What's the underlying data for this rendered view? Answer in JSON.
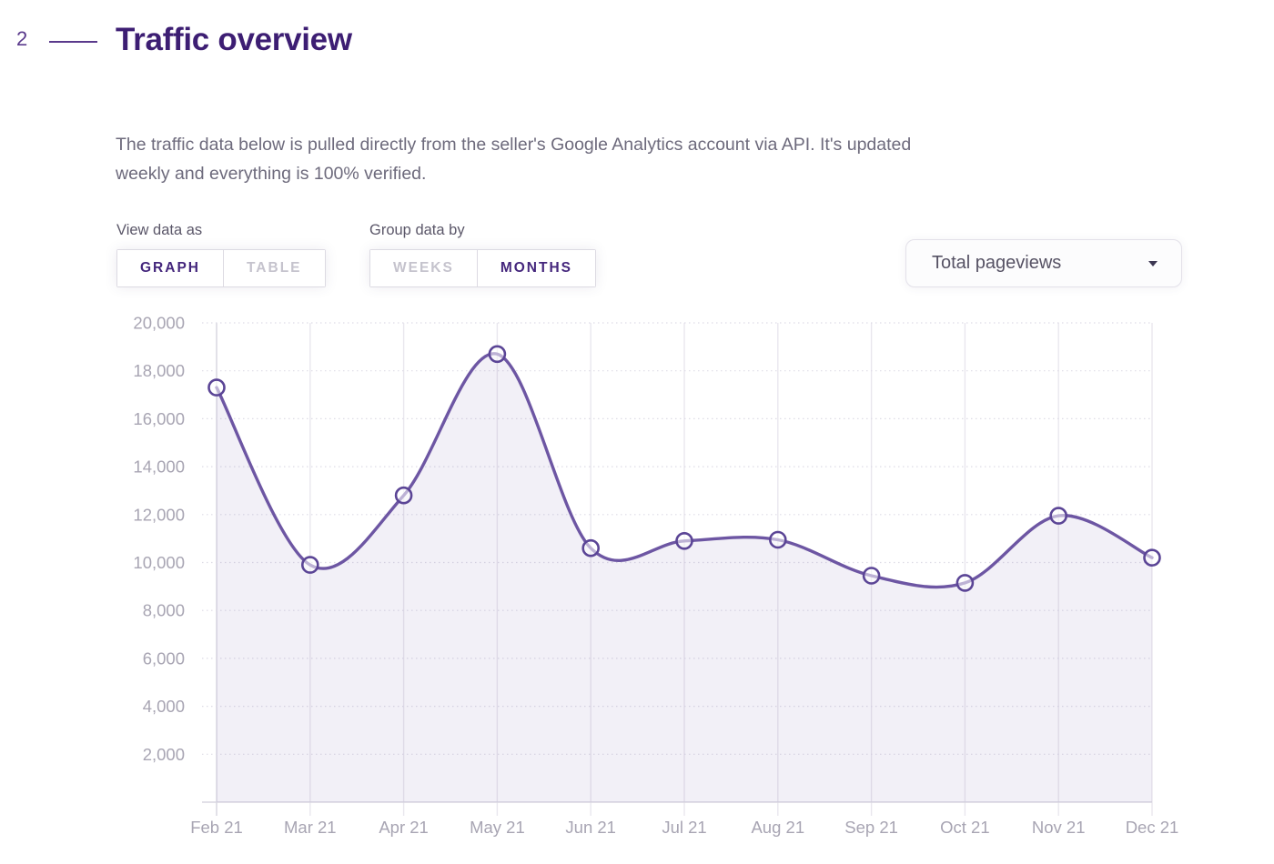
{
  "header": {
    "section_number": "2",
    "title": "Traffic overview"
  },
  "description": {
    "line1": "The traffic data below is pulled directly from the seller's Google Analytics account via API. It's updated",
    "line2": "weekly and everything is 100% verified."
  },
  "controls": {
    "view_data_as": {
      "label": "View data as",
      "options": [
        "GRAPH",
        "TABLE"
      ],
      "selected": "GRAPH"
    },
    "group_data_by": {
      "label": "Group data by",
      "options": [
        "WEEKS",
        "MONTHS"
      ],
      "selected": "MONTHS"
    },
    "metric_select": {
      "value": "Total pageviews",
      "icon": "caret-down-icon"
    }
  },
  "theme": {
    "heading_purple": "#3d1e73",
    "accent_purple": "#5a3a8c",
    "active_toggle_text": "#44267c",
    "inactive_toggle_text": "#c5c3cd",
    "body_text": "#6d6a7c"
  },
  "chart_data": {
    "type": "area",
    "title": "Traffic overview - Total pageviews by month",
    "x": [
      "Feb 21",
      "Mar 21",
      "Apr 21",
      "May 21",
      "Jun 21",
      "Jul 21",
      "Aug 21",
      "Sep 21",
      "Oct 21",
      "Nov 21",
      "Dec 21"
    ],
    "series": [
      {
        "name": "Total pageviews",
        "values": [
          17300,
          9900,
          12800,
          18700,
          10600,
          10900,
          10950,
          9450,
          9150,
          11950,
          10200
        ]
      }
    ],
    "xlabel": "",
    "ylabel": "",
    "ylim": [
      0,
      20000
    ],
    "ytick_step": 2000,
    "ytick_labels": [
      "2,000",
      "4,000",
      "6,000",
      "8,000",
      "10,000",
      "12,000",
      "14,000",
      "16,000",
      "18,000",
      "20,000"
    ],
    "grid": true,
    "legend_position": "none",
    "smooth": true,
    "markers": true,
    "colors": {
      "line": "#6d56a3",
      "marker_stroke": "#5b4596",
      "marker_fill": "rgba(255,255,255,0.55)",
      "area_fill": "rgba(109,86,163,0.09)",
      "grid_vertical": "#e9e7ee",
      "grid_vertical_first": "#d6d4de",
      "grid_horizontal": "#dedce6",
      "axis_line": "#d8d6e0",
      "tick_label": "#a8a5b3"
    }
  }
}
